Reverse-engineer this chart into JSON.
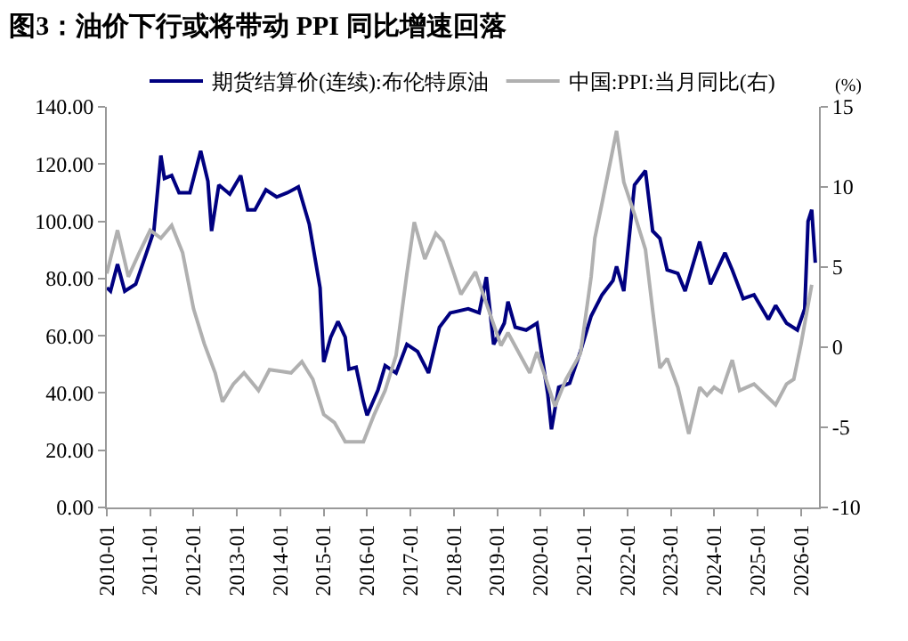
{
  "chart_data": {
    "type": "line",
    "title": "图3：油价下行或将带动 PPI 同比增速回落",
    "y2label": "(%)",
    "xlim": [
      "2010-01",
      "2026-06"
    ],
    "xticks": [
      {
        "value": "2010-01",
        "label": "2010-01"
      },
      {
        "value": "2011-01",
        "label": "2011-01"
      },
      {
        "value": "2012-01",
        "label": "2012-01"
      },
      {
        "value": "2013-01",
        "label": "2013-01"
      },
      {
        "value": "2014-01",
        "label": "2014-01"
      },
      {
        "value": "2015-01",
        "label": "2015-01"
      },
      {
        "value": "2016-01",
        "label": "2016-01"
      },
      {
        "value": "2017-01",
        "label": "2017-01"
      },
      {
        "value": "2018-01",
        "label": "2018-01"
      },
      {
        "value": "2019-01",
        "label": "2019-01"
      },
      {
        "value": "2020-01",
        "label": "2020-01"
      },
      {
        "value": "2021-01",
        "label": "2021-01"
      },
      {
        "value": "2022-01",
        "label": "2022-01"
      },
      {
        "value": "2023-01",
        "label": "2023-01"
      },
      {
        "value": "2024-01",
        "label": "2024-01"
      },
      {
        "value": "2025-01",
        "label": "2025-01"
      },
      {
        "value": "2026-01",
        "label": "2026-01"
      }
    ],
    "ylim": [
      0,
      140
    ],
    "yticks": [
      {
        "value": 0,
        "label": "0.00"
      },
      {
        "value": 20,
        "label": "20.00"
      },
      {
        "value": 40,
        "label": "40.00"
      },
      {
        "value": 60,
        "label": "60.00"
      },
      {
        "value": 80,
        "label": "80.00"
      },
      {
        "value": 100,
        "label": "100.00"
      },
      {
        "value": 120,
        "label": "120.00"
      },
      {
        "value": 140,
        "label": "140.00"
      }
    ],
    "y2lim": [
      -10,
      15
    ],
    "y2ticks": [
      -10,
      -5,
      0,
      5,
      10,
      15
    ],
    "legend": "top",
    "marker": "none",
    "line_style": "solid",
    "series": [
      {
        "name": "期货结算价(连续):布伦特原油",
        "color": "#000080",
        "x": [
          "2010-01",
          "2010-02",
          "2010-04",
          "2010-06",
          "2010-09",
          "2010-12",
          "2011-02",
          "2011-04",
          "2011-05",
          "2011-07",
          "2011-09",
          "2011-12",
          "2012-03",
          "2012-05",
          "2012-06",
          "2012-08",
          "2012-11",
          "2013-02",
          "2013-04",
          "2013-06",
          "2013-09",
          "2013-12",
          "2014-03",
          "2014-06",
          "2014-09",
          "2014-12",
          "2015-01",
          "2015-03",
          "2015-05",
          "2015-07",
          "2015-08",
          "2015-10",
          "2015-12",
          "2016-01",
          "2016-04",
          "2016-06",
          "2016-09",
          "2016-12",
          "2017-03",
          "2017-06",
          "2017-09",
          "2017-12",
          "2018-05",
          "2018-08",
          "2018-10",
          "2018-12",
          "2019-03",
          "2019-04",
          "2019-06",
          "2019-09",
          "2019-12",
          "2020-03",
          "2020-04",
          "2020-06",
          "2020-09",
          "2020-12",
          "2021-03",
          "2021-06",
          "2021-09",
          "2021-10",
          "2021-12",
          "2022-03",
          "2022-06",
          "2022-08",
          "2022-10",
          "2022-12",
          "2023-03",
          "2023-05",
          "2023-09",
          "2023-12",
          "2024-04",
          "2024-06",
          "2024-09",
          "2024-12",
          "2025-04",
          "2025-06",
          "2025-09",
          "2025-12",
          "2026-02",
          "2026-03",
          "2026-04",
          "2026-05"
        ],
        "values": [
          76.8,
          75.6,
          85,
          75.6,
          78,
          89,
          96.6,
          123,
          115,
          116,
          110,
          110,
          124.6,
          114,
          96.6,
          112.7,
          109.5,
          116,
          104,
          104,
          111,
          108.5,
          110,
          112,
          99,
          76.8,
          50.8,
          59.5,
          65,
          59.5,
          48.3,
          49,
          37,
          32.2,
          41,
          49.6,
          47,
          57,
          54.5,
          47,
          63,
          68,
          69.4,
          68,
          80.5,
          57,
          64.4,
          71.9,
          63,
          62,
          64.4,
          39.6,
          27.3,
          42,
          43.4,
          54.5,
          66.9,
          74.3,
          79.3,
          84.2,
          75.6,
          112.7,
          117.7,
          96.6,
          94,
          83,
          81.8,
          75.6,
          92.9,
          78,
          89,
          83,
          73,
          74.3,
          65.7,
          70.6,
          64.4,
          62,
          69.4,
          100,
          104,
          85.5
        ]
      },
      {
        "name": "中国:PPI:当月同比(右)",
        "color": "#b0b0b0",
        "axis": "y2",
        "x": [
          "2010-01",
          "2010-04",
          "2010-07",
          "2010-10",
          "2011-01",
          "2011-04",
          "2011-07",
          "2011-10",
          "2012-01",
          "2012-04",
          "2012-07",
          "2012-09",
          "2012-12",
          "2013-03",
          "2013-07",
          "2013-10",
          "2014-01",
          "2014-04",
          "2014-07",
          "2014-10",
          "2015-01",
          "2015-04",
          "2015-07",
          "2015-12",
          "2016-03",
          "2016-06",
          "2016-09",
          "2016-12",
          "2017-02",
          "2017-05",
          "2017-08",
          "2017-10",
          "2018-03",
          "2018-07",
          "2019-02",
          "2019-04",
          "2019-10",
          "2019-12",
          "2020-05",
          "2020-08",
          "2020-12",
          "2021-03",
          "2021-04",
          "2021-06",
          "2021-10",
          "2021-12",
          "2022-03",
          "2022-06",
          "2022-08",
          "2022-10",
          "2022-12",
          "2023-03",
          "2023-06",
          "2023-09",
          "2023-11",
          "2024-01",
          "2024-03",
          "2024-06",
          "2024-08",
          "2024-12",
          "2025-06",
          "2025-09",
          "2025-11",
          "2026-01",
          "2026-04"
        ],
        "values": [
          4.6,
          7.3,
          4.4,
          5.9,
          7.3,
          6.8,
          7.6,
          5.9,
          2.4,
          0.2,
          -1.6,
          -3.4,
          -2.3,
          -1.6,
          -2.7,
          -1.4,
          -1.5,
          -1.6,
          -0.9,
          -2,
          -4.2,
          -4.7,
          -5.9,
          -5.9,
          -4.2,
          -2.7,
          -0.5,
          4.6,
          7.8,
          5.5,
          7.1,
          6.6,
          3.3,
          4.7,
          0.1,
          0.9,
          -1.6,
          -0.3,
          -3.7,
          -2,
          -0.4,
          4.4,
          6.8,
          9,
          13.5,
          10.3,
          8.3,
          6.1,
          2.3,
          -1.3,
          -0.7,
          -2.5,
          -5.4,
          -2.5,
          -3,
          -2.5,
          -2.8,
          -0.8,
          -2.7,
          -2.3,
          -3.6,
          -2.3,
          -2,
          0.2,
          3.9
        ]
      }
    ]
  }
}
